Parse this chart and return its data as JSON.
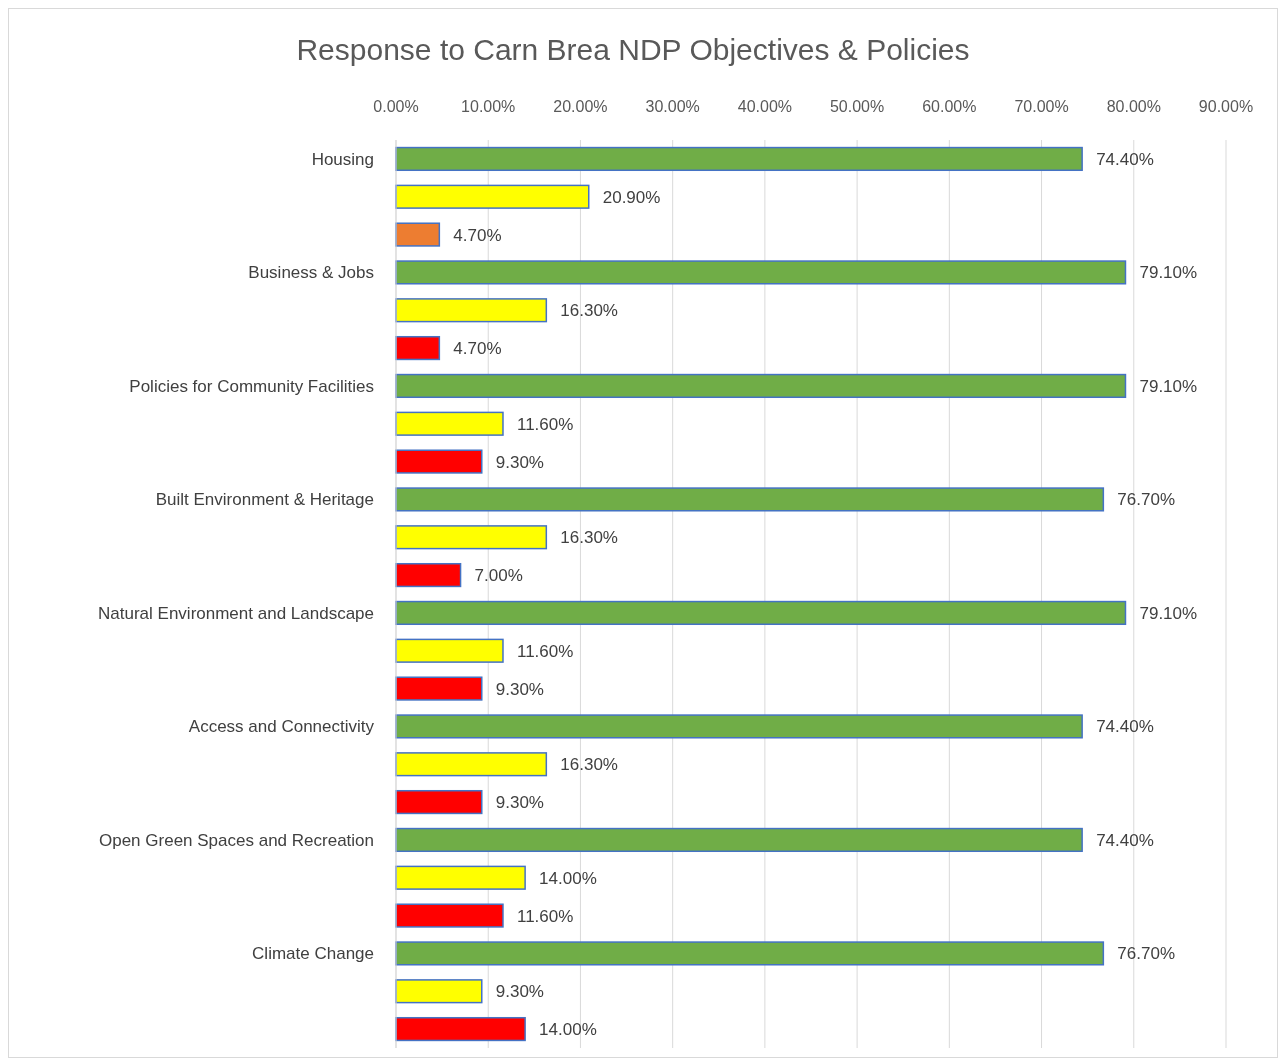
{
  "chart_data": {
    "type": "bar",
    "orientation": "horizontal",
    "title": "Response to Carn Brea NDP Objectives & Policies",
    "categories": [
      "Housing",
      "Business & Jobs",
      "Policies for Community Facilities",
      "Built Environment & Heritage",
      "Natural Environment and Landscape",
      "Access and Connectivity",
      "Open Green Spaces and Recreation",
      "Climate Change"
    ],
    "series": [
      {
        "color": "#70ad47",
        "values": [
          74.4,
          79.1,
          79.1,
          76.7,
          79.1,
          74.4,
          74.4,
          76.7
        ],
        "value_labels": [
          "74.40%",
          "79.10%",
          "79.10%",
          "76.70%",
          "79.10%",
          "74.40%",
          "74.40%",
          "76.70%"
        ]
      },
      {
        "color": "#ffff00",
        "values": [
          20.9,
          16.3,
          11.6,
          16.3,
          11.6,
          16.3,
          14.0,
          9.3
        ],
        "value_labels": [
          "20.90%",
          "16.30%",
          "11.60%",
          "16.30%",
          "11.60%",
          "16.30%",
          "14.00%",
          "9.30%"
        ]
      },
      {
        "colors": [
          "#ed7d31",
          "#ff0000",
          "#ff0000",
          "#ff0000",
          "#ff0000",
          "#ff0000",
          "#ff0000",
          "#ff0000"
        ],
        "values": [
          4.7,
          4.7,
          9.3,
          7.0,
          9.3,
          9.3,
          11.6,
          14.0
        ],
        "value_labels": [
          "4.70%",
          "4.70%",
          "9.30%",
          "7.00%",
          "9.30%",
          "9.30%",
          "11.60%",
          "14.00%"
        ]
      }
    ],
    "xlim": [
      0,
      90
    ],
    "xticks": [
      {
        "value": 0,
        "label": "0.00%"
      },
      {
        "value": 10,
        "label": "10.00%"
      },
      {
        "value": 20,
        "label": "20.00%"
      },
      {
        "value": 30,
        "label": "30.00%"
      },
      {
        "value": 40,
        "label": "40.00%"
      },
      {
        "value": 50,
        "label": "50.00%"
      },
      {
        "value": 60,
        "label": "60.00%"
      },
      {
        "value": 70,
        "label": "70.00%"
      },
      {
        "value": 80,
        "label": "80.00%"
      },
      {
        "value": 90,
        "label": "90.00%"
      }
    ],
    "grid": "x"
  }
}
